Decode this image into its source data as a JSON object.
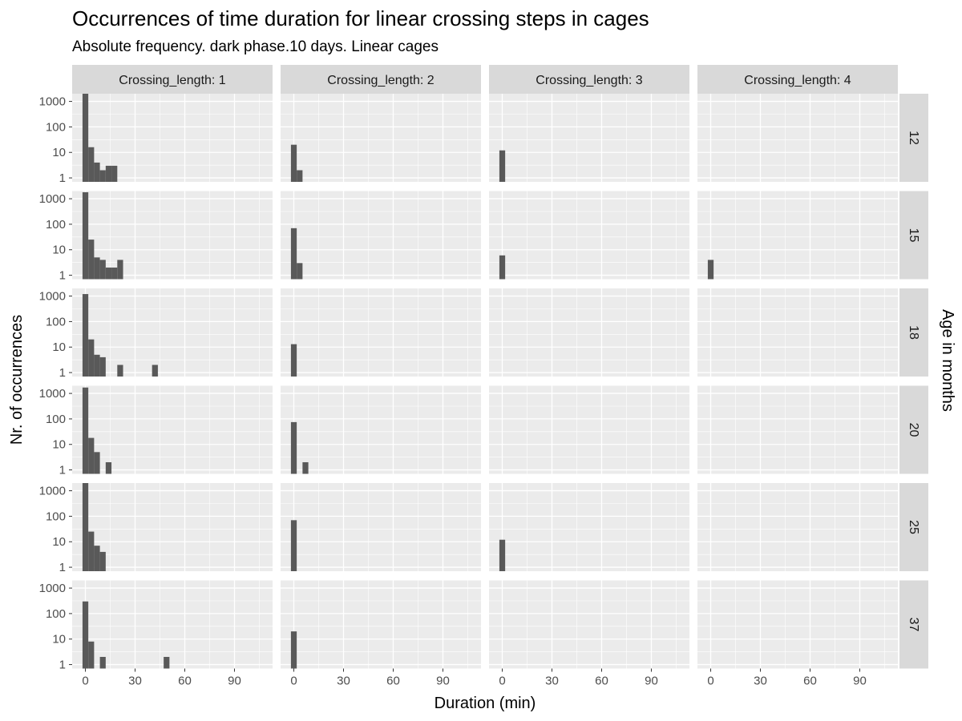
{
  "chart_data": {
    "type": "bar",
    "title": "Occurrences of time duration for linear crossing steps in cages",
    "subtitle": "Absolute frequency. dark phase.10 days. Linear cages",
    "xlabel": "Duration (min)",
    "ylabel": "Nr. of occurrences",
    "facet_row_title": "Age in months",
    "facet_col_prefix": "Crossing_length: ",
    "facet_cols": [
      "1",
      "2",
      "3",
      "4"
    ],
    "facet_rows": [
      "12",
      "15",
      "18",
      "20",
      "25",
      "37"
    ],
    "xlim": [
      -8,
      113
    ],
    "x_ticks": [
      0,
      30,
      60,
      90
    ],
    "y_scale": "log10",
    "ylim": [
      0.7,
      2000
    ],
    "y_ticks": [
      1,
      10,
      100,
      1000
    ],
    "y_tick_labels": [
      "1",
      "10",
      "100",
      "1000"
    ],
    "bin_width": 3.5,
    "grid": true,
    "panels": [
      {
        "row": "12",
        "col": "1",
        "x": [
          0,
          3.5,
          7,
          10.5,
          14,
          17.5
        ],
        "values": [
          2000,
          16,
          4,
          2,
          3,
          3
        ]
      },
      {
        "row": "12",
        "col": "2",
        "x": [
          0,
          3.5
        ],
        "values": [
          20,
          2
        ]
      },
      {
        "row": "12",
        "col": "3",
        "x": [
          0
        ],
        "values": [
          12
        ]
      },
      {
        "row": "12",
        "col": "4",
        "x": [],
        "values": []
      },
      {
        "row": "15",
        "col": "1",
        "x": [
          0,
          3.5,
          7,
          10.5,
          14,
          17.5,
          21
        ],
        "values": [
          1800,
          25,
          5,
          4,
          2,
          2,
          4
        ]
      },
      {
        "row": "15",
        "col": "2",
        "x": [
          0,
          3.5
        ],
        "values": [
          70,
          3
        ]
      },
      {
        "row": "15",
        "col": "3",
        "x": [
          0
        ],
        "values": [
          6
        ]
      },
      {
        "row": "15",
        "col": "4",
        "x": [
          0
        ],
        "values": [
          4
        ]
      },
      {
        "row": "18",
        "col": "1",
        "x": [
          0,
          3.5,
          7,
          10.5,
          21,
          42
        ],
        "values": [
          1200,
          20,
          5,
          4,
          2,
          2
        ]
      },
      {
        "row": "18",
        "col": "2",
        "x": [
          0
        ],
        "values": [
          13
        ]
      },
      {
        "row": "18",
        "col": "3",
        "x": [],
        "values": []
      },
      {
        "row": "18",
        "col": "4",
        "x": [],
        "values": []
      },
      {
        "row": "20",
        "col": "1",
        "x": [
          0,
          3.5,
          7,
          14
        ],
        "values": [
          1700,
          18,
          5,
          2
        ]
      },
      {
        "row": "20",
        "col": "2",
        "x": [
          0,
          7
        ],
        "values": [
          75,
          2
        ]
      },
      {
        "row": "20",
        "col": "3",
        "x": [],
        "values": []
      },
      {
        "row": "20",
        "col": "4",
        "x": [],
        "values": []
      },
      {
        "row": "25",
        "col": "1",
        "x": [
          0,
          3.5,
          7,
          10.5
        ],
        "values": [
          2000,
          25,
          7,
          4
        ]
      },
      {
        "row": "25",
        "col": "2",
        "x": [
          0
        ],
        "values": [
          70
        ]
      },
      {
        "row": "25",
        "col": "3",
        "x": [
          0
        ],
        "values": [
          12
        ]
      },
      {
        "row": "25",
        "col": "4",
        "x": [],
        "values": []
      },
      {
        "row": "37",
        "col": "1",
        "x": [
          0,
          3.5,
          10.5,
          49
        ],
        "values": [
          300,
          8,
          2,
          2
        ]
      },
      {
        "row": "37",
        "col": "2",
        "x": [
          0
        ],
        "values": [
          20
        ]
      },
      {
        "row": "37",
        "col": "3",
        "x": [],
        "values": []
      },
      {
        "row": "37",
        "col": "4",
        "x": [],
        "values": []
      }
    ],
    "colors": {
      "bar": "#595959",
      "panel_bg": "#ebebeb",
      "grid_major": "#ffffff",
      "strip_bg": "#d9d9d9",
      "tick_text": "#4d4d4d"
    }
  }
}
